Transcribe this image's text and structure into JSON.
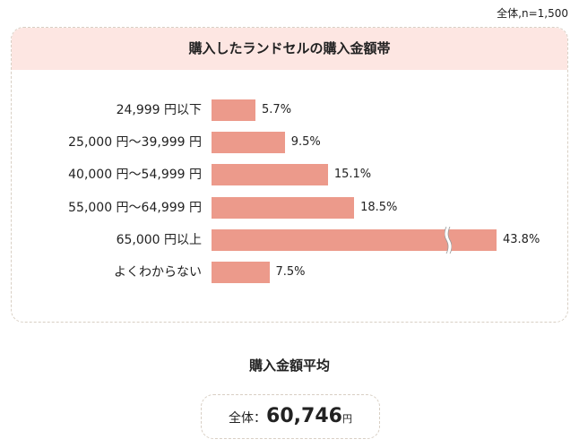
{
  "sample_note": "全体,n=1,500",
  "chart_data": {
    "type": "bar",
    "orientation": "horizontal",
    "title": "購入したランドセルの購入金額帯",
    "categories": [
      "24,999 円以下",
      "25,000 円～39,999 円",
      "40,000 円～54,999 円",
      "55,000 円～64,999 円",
      "65,000 円以上",
      "よくわからない"
    ],
    "values": [
      5.7,
      9.5,
      15.1,
      18.5,
      43.8,
      7.5
    ],
    "data_labels": [
      "5.7%",
      "9.5%",
      "15.1%",
      "18.5%",
      "43.8%",
      "7.5%"
    ],
    "unit": "%",
    "broken_axis_bars": [
      4
    ],
    "bar_color": "#ec9a8b",
    "grid": false
  },
  "average": {
    "title": "購入金額平均",
    "prefix": "全体：",
    "value": "60,746",
    "unit": "円"
  }
}
